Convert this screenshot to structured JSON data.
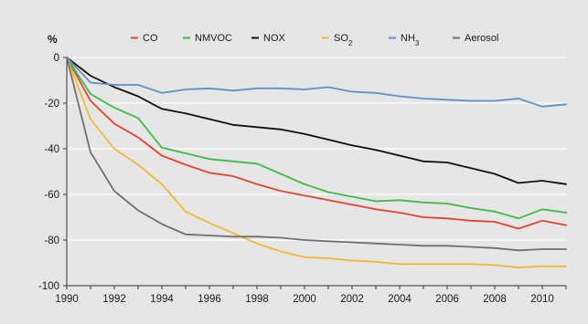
{
  "chart_data": {
    "type": "line",
    "title": "",
    "xlabel": "",
    "ylabel": "%",
    "xlim": [
      1990,
      2011
    ],
    "ylim": [
      -100,
      0
    ],
    "x_ticks": [
      1990,
      1992,
      1994,
      1996,
      1998,
      2000,
      2002,
      2004,
      2006,
      2008,
      2010
    ],
    "x_tick_labels": [
      "1990",
      "1992",
      "1994",
      "1996",
      "1998",
      "2000",
      "2002",
      "2004",
      "2006",
      "2008",
      "2010"
    ],
    "y_ticks": [
      0,
      -20,
      -40,
      -60,
      -80,
      -100
    ],
    "y_tick_labels": [
      "0",
      "-20",
      "-40",
      "-60",
      "-80",
      "-100"
    ],
    "grid": "horizontal",
    "legend_position": "top",
    "x": [
      1990,
      1991,
      1992,
      1993,
      1994,
      1995,
      1996,
      1997,
      1998,
      1999,
      2000,
      2001,
      2002,
      2003,
      2004,
      2005,
      2006,
      2007,
      2008,
      2009,
      2010,
      2011
    ],
    "series": [
      {
        "name": "CO",
        "color": "#e8402a",
        "values": [
          0,
          -19,
          -29,
          -35,
          -43,
          -47,
          -50.5,
          -52,
          -55.5,
          -58.5,
          -60.5,
          -62.5,
          -64.5,
          -66.5,
          -68,
          -70,
          -70.5,
          -71.5,
          -72,
          -75,
          -71.5,
          -73.5
        ]
      },
      {
        "name": "NMVOC",
        "color": "#3bbd43",
        "values": [
          0,
          -16,
          -22,
          -26.5,
          -39.5,
          -42,
          -44.5,
          -45.5,
          -46.5,
          -51,
          -55.5,
          -59,
          -61,
          -63,
          -62.5,
          -63.5,
          -64,
          -66,
          -67.5,
          -70.5,
          -66.5,
          -68
        ]
      },
      {
        "name": "NOX",
        "color": "#111111",
        "values": [
          0,
          -8,
          -13,
          -17,
          -22.5,
          -24.5,
          -27,
          -29.5,
          -30.5,
          -31.5,
          -33.5,
          -36,
          -38.5,
          -40.5,
          -43,
          -45.5,
          -46,
          -48.5,
          -51,
          -55,
          -54,
          -55.5
        ]
      },
      {
        "name": "SO2",
        "label_main": "SO",
        "label_sub": "2",
        "color": "#f2b830",
        "values": [
          0,
          -27,
          -40,
          -47,
          -55.5,
          -67.5,
          -72.5,
          -77,
          -81.5,
          -85,
          -87.5,
          -88,
          -89,
          -89.5,
          -90.5,
          -90.5,
          -90.5,
          -90.5,
          -91,
          -92,
          -91.5,
          -91.5
        ]
      },
      {
        "name": "NH3",
        "label_main": "NH",
        "label_sub": "3",
        "color": "#5b93c9",
        "values": [
          0,
          -11,
          -12,
          -12,
          -15.5,
          -14,
          -13.5,
          -14.5,
          -13.5,
          -13.5,
          -14,
          -13,
          -15,
          -15.5,
          -17,
          -18,
          -18.5,
          -19,
          -19,
          -18,
          -21.5,
          -20.5
        ]
      },
      {
        "name": "Aerosol",
        "color": "#707070",
        "values": [
          0,
          -41.5,
          -58.5,
          -67,
          -73,
          -77.5,
          -78,
          -78.5,
          -78.5,
          -79,
          -80,
          -80.5,
          -81,
          -81.5,
          -82,
          -82.5,
          -82.5,
          -83,
          -83.5,
          -84.5,
          -84,
          -84
        ]
      }
    ]
  }
}
